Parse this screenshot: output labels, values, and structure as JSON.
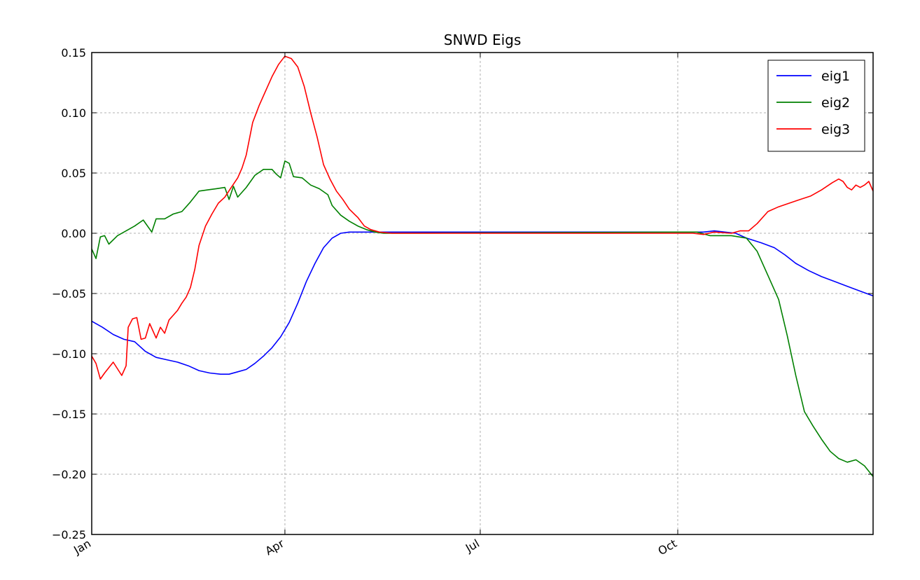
{
  "chart_data": {
    "type": "line",
    "title": "SNWD Eigs",
    "xlabel": "",
    "ylabel": "",
    "x_range_days": [
      0,
      364
    ],
    "x_ticks": [
      {
        "label": "Jan",
        "day": 0
      },
      {
        "label": "Apr",
        "day": 90
      },
      {
        "label": "Jul",
        "day": 181
      },
      {
        "label": "Oct",
        "day": 273
      }
    ],
    "ylim": [
      -0.25,
      0.15
    ],
    "y_ticks": [
      {
        "label": "0.15",
        "value": 0.15
      },
      {
        "label": "0.10",
        "value": 0.1
      },
      {
        "label": "0.05",
        "value": 0.05
      },
      {
        "label": "0.00",
        "value": 0.0
      },
      {
        "label": "−0.05",
        "value": -0.05
      },
      {
        "label": "−0.10",
        "value": -0.1
      },
      {
        "label": "−0.15",
        "value": -0.15
      },
      {
        "label": "−0.20",
        "value": -0.2
      },
      {
        "label": "−0.25",
        "value": -0.25
      }
    ],
    "grid": true,
    "legend_position": "top-right",
    "series": [
      {
        "name": "eig1",
        "color": "#0000ff",
        "points": [
          [
            0,
            -0.073
          ],
          [
            5,
            -0.078
          ],
          [
            10,
            -0.084
          ],
          [
            15,
            -0.088
          ],
          [
            20,
            -0.09
          ],
          [
            25,
            -0.098
          ],
          [
            30,
            -0.103
          ],
          [
            35,
            -0.105
          ],
          [
            40,
            -0.107
          ],
          [
            45,
            -0.11
          ],
          [
            50,
            -0.114
          ],
          [
            55,
            -0.116
          ],
          [
            60,
            -0.117
          ],
          [
            64,
            -0.117
          ],
          [
            68,
            -0.115
          ],
          [
            72,
            -0.113
          ],
          [
            76,
            -0.108
          ],
          [
            80,
            -0.102
          ],
          [
            84,
            -0.095
          ],
          [
            88,
            -0.086
          ],
          [
            92,
            -0.074
          ],
          [
            96,
            -0.058
          ],
          [
            100,
            -0.04
          ],
          [
            104,
            -0.025
          ],
          [
            108,
            -0.012
          ],
          [
            112,
            -0.004
          ],
          [
            116,
            0.0
          ],
          [
            120,
            0.001
          ],
          [
            273,
            0.001
          ],
          [
            285,
            0.001
          ],
          [
            290,
            0.002
          ],
          [
            300,
            0.0
          ],
          [
            305,
            -0.004
          ],
          [
            312,
            -0.008
          ],
          [
            318,
            -0.012
          ],
          [
            323,
            -0.018
          ],
          [
            328,
            -0.025
          ],
          [
            334,
            -0.031
          ],
          [
            340,
            -0.036
          ],
          [
            346,
            -0.04
          ],
          [
            352,
            -0.044
          ],
          [
            358,
            -0.048
          ],
          [
            364,
            -0.052
          ]
        ]
      },
      {
        "name": "eig2",
        "color": "#008000",
        "points": [
          [
            0,
            -0.013
          ],
          [
            2,
            -0.021
          ],
          [
            4,
            -0.003
          ],
          [
            6,
            -0.002
          ],
          [
            8,
            -0.009
          ],
          [
            12,
            -0.002
          ],
          [
            16,
            0.002
          ],
          [
            20,
            0.006
          ],
          [
            24,
            0.011
          ],
          [
            28,
            0.001
          ],
          [
            30,
            0.012
          ],
          [
            34,
            0.012
          ],
          [
            38,
            0.016
          ],
          [
            42,
            0.018
          ],
          [
            46,
            0.026
          ],
          [
            50,
            0.035
          ],
          [
            54,
            0.036
          ],
          [
            58,
            0.037
          ],
          [
            62,
            0.038
          ],
          [
            64,
            0.028
          ],
          [
            66,
            0.039
          ],
          [
            68,
            0.03
          ],
          [
            72,
            0.038
          ],
          [
            76,
            0.048
          ],
          [
            80,
            0.053
          ],
          [
            84,
            0.053
          ],
          [
            86,
            0.049
          ],
          [
            88,
            0.046
          ],
          [
            90,
            0.06
          ],
          [
            92,
            0.058
          ],
          [
            94,
            0.047
          ],
          [
            98,
            0.046
          ],
          [
            102,
            0.04
          ],
          [
            106,
            0.037
          ],
          [
            110,
            0.032
          ],
          [
            112,
            0.023
          ],
          [
            116,
            0.015
          ],
          [
            120,
            0.01
          ],
          [
            124,
            0.006
          ],
          [
            128,
            0.003
          ],
          [
            132,
            0.001
          ],
          [
            136,
            0.0
          ],
          [
            140,
            0.0
          ],
          [
            273,
            0.001
          ],
          [
            282,
            0.001
          ],
          [
            288,
            -0.002
          ],
          [
            298,
            -0.002
          ],
          [
            305,
            -0.004
          ],
          [
            310,
            -0.015
          ],
          [
            315,
            -0.035
          ],
          [
            320,
            -0.055
          ],
          [
            324,
            -0.085
          ],
          [
            328,
            -0.118
          ],
          [
            332,
            -0.148
          ],
          [
            336,
            -0.16
          ],
          [
            340,
            -0.171
          ],
          [
            344,
            -0.181
          ],
          [
            348,
            -0.187
          ],
          [
            352,
            -0.19
          ],
          [
            356,
            -0.188
          ],
          [
            360,
            -0.193
          ],
          [
            364,
            -0.202
          ]
        ]
      },
      {
        "name": "eig3",
        "color": "#ff0000",
        "points": [
          [
            0,
            -0.102
          ],
          [
            2,
            -0.108
          ],
          [
            4,
            -0.121
          ],
          [
            6,
            -0.116
          ],
          [
            10,
            -0.107
          ],
          [
            14,
            -0.118
          ],
          [
            16,
            -0.11
          ],
          [
            17,
            -0.078
          ],
          [
            19,
            -0.071
          ],
          [
            21,
            -0.07
          ],
          [
            23,
            -0.088
          ],
          [
            25,
            -0.087
          ],
          [
            27,
            -0.075
          ],
          [
            30,
            -0.087
          ],
          [
            32,
            -0.078
          ],
          [
            34,
            -0.083
          ],
          [
            36,
            -0.072
          ],
          [
            38,
            -0.068
          ],
          [
            40,
            -0.064
          ],
          [
            42,
            -0.058
          ],
          [
            44,
            -0.053
          ],
          [
            46,
            -0.045
          ],
          [
            48,
            -0.03
          ],
          [
            50,
            -0.01
          ],
          [
            53,
            0.006
          ],
          [
            56,
            0.016
          ],
          [
            59,
            0.025
          ],
          [
            62,
            0.03
          ],
          [
            65,
            0.038
          ],
          [
            68,
            0.046
          ],
          [
            70,
            0.054
          ],
          [
            72,
            0.065
          ],
          [
            75,
            0.092
          ],
          [
            78,
            0.106
          ],
          [
            81,
            0.118
          ],
          [
            84,
            0.13
          ],
          [
            87,
            0.14
          ],
          [
            90,
            0.147
          ],
          [
            93,
            0.145
          ],
          [
            96,
            0.138
          ],
          [
            99,
            0.122
          ],
          [
            102,
            0.1
          ],
          [
            105,
            0.08
          ],
          [
            108,
            0.057
          ],
          [
            111,
            0.045
          ],
          [
            114,
            0.035
          ],
          [
            117,
            0.028
          ],
          [
            120,
            0.02
          ],
          [
            124,
            0.013
          ],
          [
            127,
            0.006
          ],
          [
            130,
            0.003
          ],
          [
            134,
            0.001
          ],
          [
            140,
            0.0
          ],
          [
            273,
            0.0
          ],
          [
            280,
            0.0
          ],
          [
            285,
            -0.001
          ],
          [
            290,
            0.001
          ],
          [
            298,
            0.0
          ],
          [
            302,
            0.002
          ],
          [
            306,
            0.002
          ],
          [
            310,
            0.008
          ],
          [
            315,
            0.018
          ],
          [
            320,
            0.022
          ],
          [
            325,
            0.025
          ],
          [
            330,
            0.028
          ],
          [
            335,
            0.031
          ],
          [
            340,
            0.036
          ],
          [
            345,
            0.042
          ],
          [
            348,
            0.045
          ],
          [
            350,
            0.043
          ],
          [
            352,
            0.038
          ],
          [
            354,
            0.036
          ],
          [
            356,
            0.04
          ],
          [
            358,
            0.038
          ],
          [
            360,
            0.04
          ],
          [
            362,
            0.043
          ],
          [
            364,
            0.035
          ]
        ]
      }
    ]
  }
}
